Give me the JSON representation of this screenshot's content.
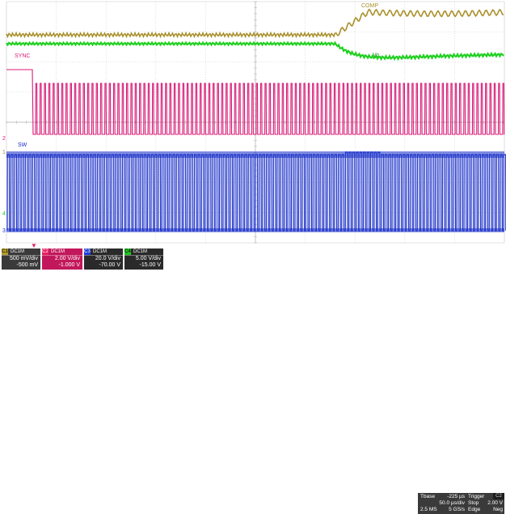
{
  "traces": {
    "comp_label": "COMP",
    "vo_label": "Vo",
    "sync_label": "SYNC",
    "sw_label": "SW",
    "colors": {
      "ch1": "#a8902a",
      "ch2": "#d81b77",
      "ch3": "#1a2fc8",
      "ch4": "#1fd01f",
      "grid": "#c8c8c8"
    }
  },
  "ground_markers": {
    "ch2": "2",
    "ch1": "1",
    "ch4": "4",
    "ch3": "3"
  },
  "channels": [
    {
      "num": "C1",
      "tag": "DC1M",
      "scale": "500 mV/div",
      "offset": "-500 mV"
    },
    {
      "num": "C2",
      "tag": "DC1M",
      "scale": "2.00 V/div",
      "offset": "-1.000 V"
    },
    {
      "num": "C3",
      "tag": "DC1M",
      "scale": "20.0 V/div",
      "offset": "-70.00 V"
    },
    {
      "num": "C4",
      "tag": "DC1M",
      "scale": "5.00 V/div",
      "offset": "-15.00 V"
    }
  ],
  "timebase": {
    "tbase_label": "Tbase",
    "tbase_value": "-225 µs",
    "tdiv": "50.0 µs/div",
    "samples": "2.5 MS",
    "rate": "5 GS/s",
    "trigger_label": "Trigger",
    "trigger_badge": "C2",
    "mode": "Stop",
    "level": "2.00 V",
    "type": "Edge",
    "slope": "Neg"
  }
}
